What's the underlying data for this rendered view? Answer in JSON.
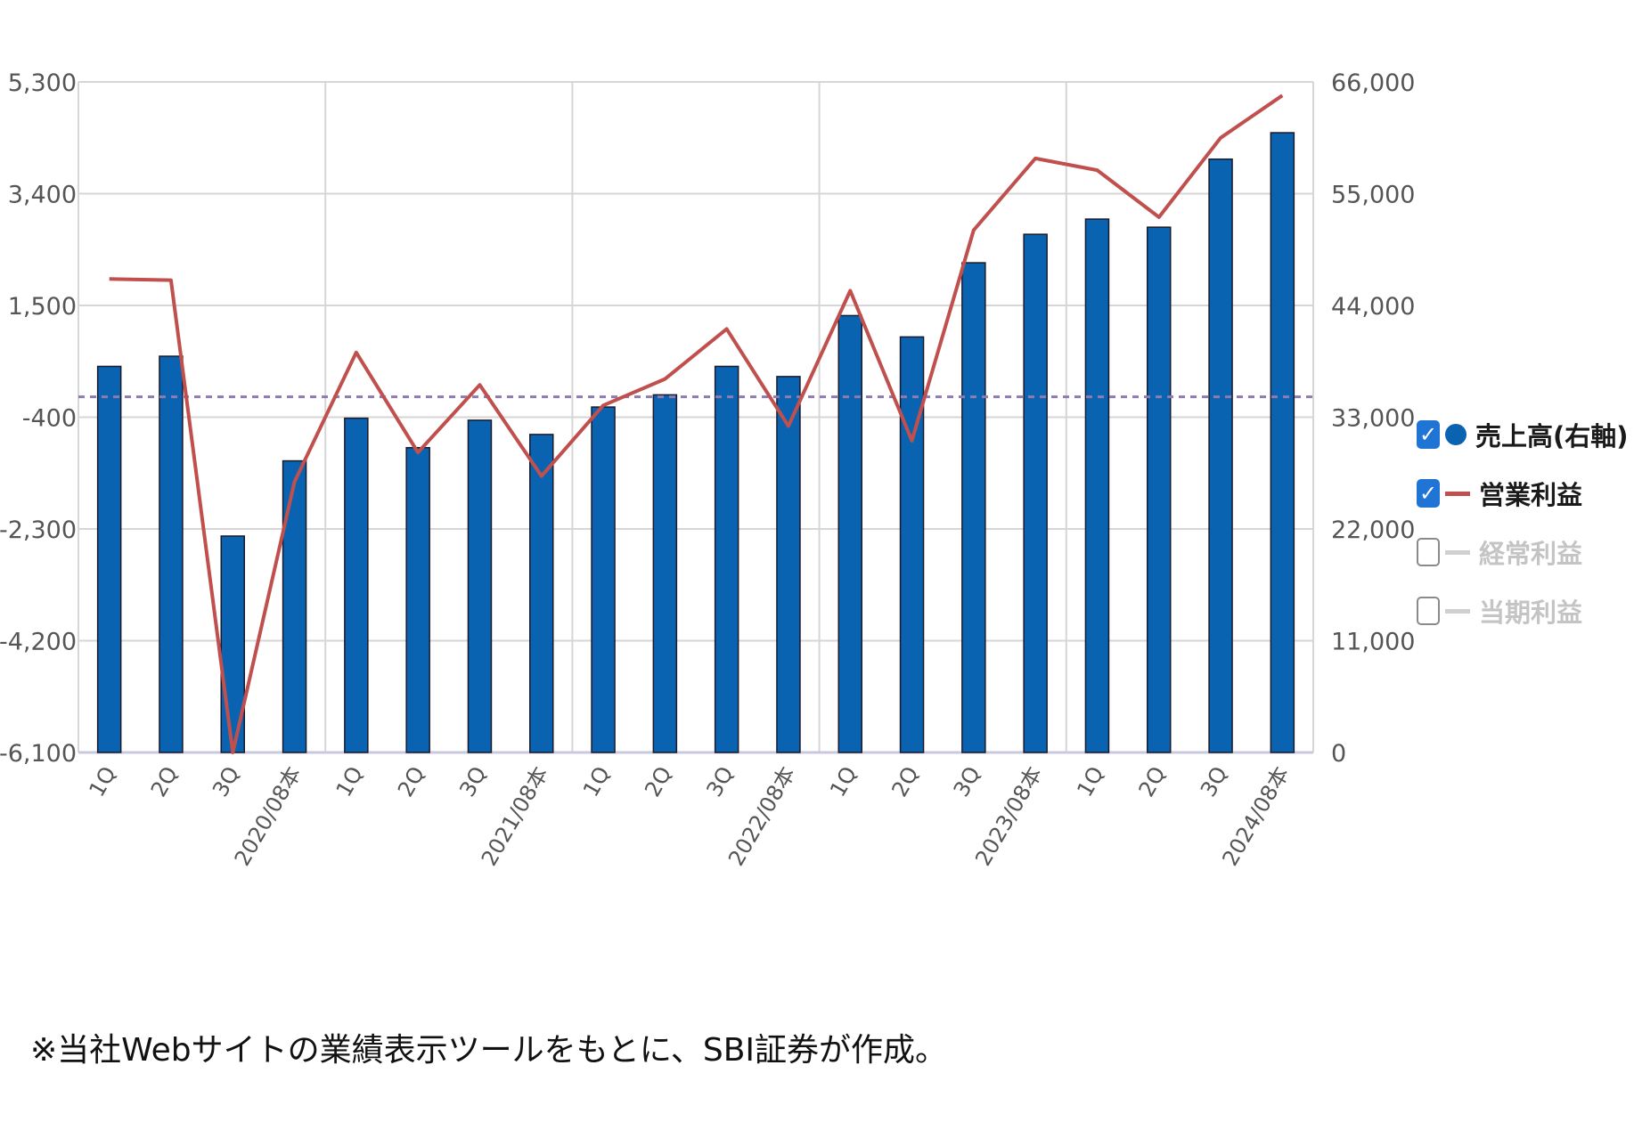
{
  "chart_data": {
    "type": "bar",
    "categories": [
      "1Q",
      "2Q",
      "3Q",
      "2020/08本",
      "1Q",
      "2Q",
      "3Q",
      "2021/08本",
      "1Q",
      "2Q",
      "3Q",
      "2022/08本",
      "1Q",
      "2Q",
      "3Q",
      "2023/08本",
      "1Q",
      "2Q",
      "3Q",
      "2024/08本"
    ],
    "series": [
      {
        "name": "売上高(右軸)",
        "type": "bar",
        "axis": "right",
        "color": "#0a63b0",
        "values": [
          38000,
          39000,
          21300,
          28700,
          32900,
          30000,
          32700,
          31300,
          34000,
          35200,
          38000,
          37000,
          43000,
          40900,
          48200,
          51000,
          52500,
          51700,
          58400,
          61000
        ]
      },
      {
        "name": "営業利益",
        "type": "line",
        "axis": "left",
        "color": "#c0504d",
        "values": [
          1950,
          1930,
          -6100,
          -1500,
          700,
          -1000,
          150,
          -1400,
          -200,
          250,
          1100,
          -550,
          1750,
          -800,
          2780,
          4000,
          3800,
          3000,
          4350,
          5070
        ]
      }
    ],
    "left_axis": {
      "min": -6100,
      "max": 5300,
      "ticks": [
        "5,300",
        "3,400",
        "1,500",
        "-400",
        "-2,300",
        "-4,200",
        "-6,100"
      ]
    },
    "right_axis": {
      "min": 0,
      "max": 66000,
      "ticks": [
        "66,000",
        "55,000",
        "44,000",
        "33,000",
        "22,000",
        "11,000",
        "0"
      ]
    },
    "reference_line": {
      "value": 35000,
      "axis": "right",
      "color": "#8e7cb0",
      "style": "dashed"
    },
    "grid": true,
    "legend_position": "right"
  },
  "legend": {
    "items": [
      {
        "label": "売上高(右軸)",
        "checked": true,
        "marker": "dot",
        "color": "#0a63b0"
      },
      {
        "label": "営業利益",
        "checked": true,
        "marker": "line",
        "color": "#c0504d"
      },
      {
        "label": "経常利益",
        "checked": false,
        "marker": "line",
        "color": "#d0d0d0"
      },
      {
        "label": "当期利益",
        "checked": false,
        "marker": "line",
        "color": "#d0d0d0"
      }
    ],
    "check_glyph": "✓"
  },
  "footnote": "※当社Webサイトの業績表示ツールをもとに、SBI証券が作成。"
}
